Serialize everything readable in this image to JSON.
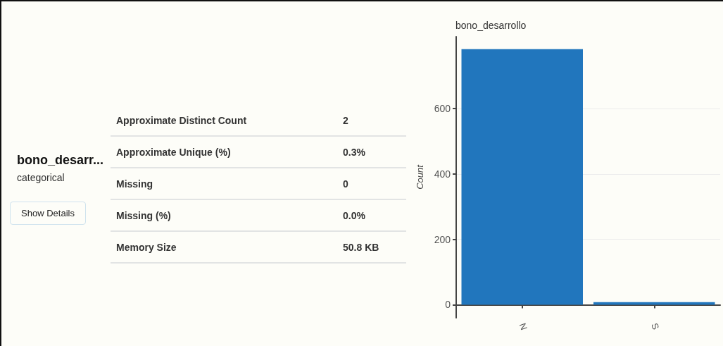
{
  "chart_data": [
    {
      "type": "other",
      "title": "bono_desarr...",
      "subtitle": "categorical",
      "annotations": [
        "Show Details",
        "Approximate Distinct Count",
        "2",
        "Approximate Unique (%)",
        "0.3%",
        "Missing",
        "0",
        "Missing (%)",
        "0.0%",
        "Memory Size",
        "50.8 KB"
      ]
    },
    {
      "type": "bar",
      "title": "bono_desarrollo",
      "ylabel": "Count",
      "categories": [
        "N",
        "S"
      ],
      "values": [
        782,
        8
      ],
      "color": "#2176bd",
      "ylim": [
        -40,
        820
      ],
      "yticks": [
        0,
        200,
        400,
        600
      ],
      "grid": "y"
    }
  ]
}
